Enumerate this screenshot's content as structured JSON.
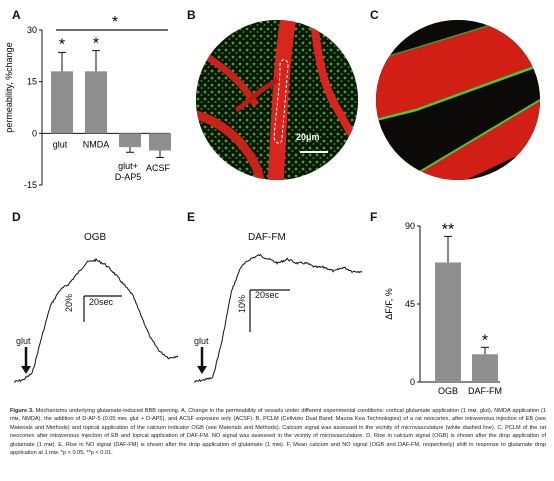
{
  "panels": {
    "A": {
      "label": "A",
      "ylabel": "permeability, %change",
      "yticks": [
        "30",
        "15",
        "0",
        "-15"
      ],
      "bar_labels": [
        "glut",
        "NMDA",
        "glut+\nD-AP5",
        "ACSF"
      ],
      "sig_marks": [
        "*",
        "*",
        "*"
      ]
    },
    "B": {
      "label": "B",
      "scalebar": "20μm"
    },
    "C": {
      "label": "C"
    },
    "D": {
      "label": "D",
      "trace_title": "OGB",
      "scale_y": "20%",
      "scale_x": "20sec",
      "stim": "glut"
    },
    "E": {
      "label": "E",
      "trace_title": "DAF-FM",
      "scale_y": "10%",
      "scale_x": "20sec",
      "stim": "glut"
    },
    "F": {
      "label": "F",
      "ylabel": "ΔF/F, %",
      "yticks": [
        "90",
        "45",
        "0"
      ],
      "sig_marks": [
        "**",
        "*"
      ]
    }
  },
  "chart_data": [
    {
      "type": "bar",
      "panel": "A",
      "categories": [
        "glut",
        "NMDA",
        "glut+ D-AP5",
        "ACSF"
      ],
      "values": [
        18,
        18,
        -4,
        -5
      ],
      "errors": [
        5.5,
        6,
        1.5,
        2
      ],
      "ylabel": "permeability, %change",
      "ylim": [
        -15,
        30
      ],
      "significance": [
        "*",
        "*",
        "",
        ""
      ],
      "bracket": {
        "from": "glut",
        "to": "ACSF",
        "mark": "*"
      }
    },
    {
      "type": "line",
      "panel": "D",
      "title": "OGB",
      "x": [
        0,
        5,
        10,
        15,
        20,
        25,
        30,
        35,
        40,
        45,
        50,
        55,
        60,
        65,
        70,
        75,
        80,
        85,
        90
      ],
      "y": [
        0,
        1,
        4,
        20,
        35,
        42,
        45,
        50,
        55,
        56,
        54,
        50,
        45,
        40,
        30,
        20,
        14,
        11,
        12
      ],
      "scalebar": {
        "y": "20%",
        "x": "20sec"
      }
    },
    {
      "type": "line",
      "panel": "E",
      "title": "DAF-FM",
      "x": [
        0,
        5,
        10,
        15,
        20,
        25,
        30,
        35,
        40,
        45,
        50,
        55,
        60,
        65,
        70,
        75,
        80,
        85,
        90
      ],
      "y": [
        0,
        0.5,
        1,
        10,
        22,
        28,
        30,
        31,
        30,
        29,
        30,
        29,
        29,
        28,
        28,
        27,
        28,
        27,
        27
      ],
      "scalebar": {
        "y": "10%",
        "x": "20sec"
      }
    },
    {
      "type": "bar",
      "panel": "F",
      "categories": [
        "OGB",
        "DAF-FM"
      ],
      "values": [
        69,
        16
      ],
      "errors": [
        15,
        4
      ],
      "ylabel": "ΔF/F, %",
      "ylim": [
        0,
        90
      ],
      "significance": [
        "**",
        "*"
      ]
    }
  ],
  "caption": {
    "figure": "Figure 3.",
    "text": "Mechanisms underlying glutamate-induced BBB opening. A, Change in the permeability of vessels under different experimental conditions: cortical glutamate application (1 mм, glut), NMDA application (1 mм, NMDA), the addition of D-AP-5 (0.05 mм, glut + D-AP5), and ACSF exposure only (ACSF). B, PCLM (Cellvizio Dual Band; Mauna Kea Technologies) of a rat neocortex, after intravenous injection of EB (see Materials and Methods) and topical application of the calcium indicator OGB (see Materials and Methods). Calcium signal was assessed in the vicinity of microvasculature (white dashed line). C, PCLM of the rat neocortex after intravenous injection of EB and topical application of DAF-FM. NO signal was assessed in the vicinity of microvasculature. D, Rise in calcium signal (OGB) is shown after the drop application of glutamate (1 mм). E, Rise in NO signal (DAF-FM) is shown after the drop application of glutamate (1 mм). F, Mean calcium and NO signal (OGB and DAF-FM, respectively) shift in response to glutamate drop application at 1 mм. *p < 0.05, **p < 0.01."
  },
  "colors": {
    "bar": "#8f8f8f",
    "vessel": "#d8261e",
    "green": "#35b22a",
    "bg_dark": "#0b1607"
  }
}
